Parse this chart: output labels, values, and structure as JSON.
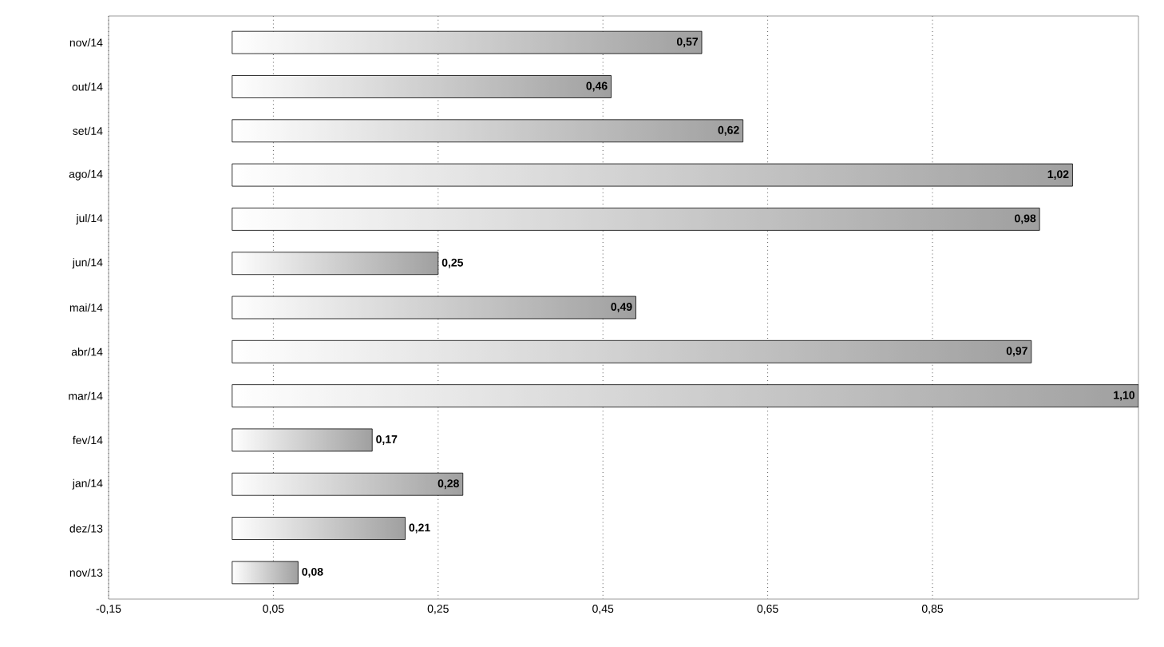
{
  "chart_data": {
    "type": "bar",
    "orientation": "horizontal",
    "categories": [
      "nov/14",
      "out/14",
      "set/14",
      "ago/14",
      "jul/14",
      "jun/14",
      "mai/14",
      "abr/14",
      "mar/14",
      "fev/14",
      "jan/14",
      "dez/13",
      "nov/13"
    ],
    "values": [
      0.57,
      0.46,
      0.62,
      1.02,
      0.98,
      0.25,
      0.49,
      0.97,
      1.1,
      0.17,
      0.28,
      0.21,
      0.08
    ],
    "value_labels": [
      "0,57",
      "0,46",
      "0,62",
      "1,02",
      "0,98",
      "0,25",
      "0,49",
      "0,97",
      "1,10",
      "0,17",
      "0,28",
      "0,21",
      "0,08"
    ],
    "color": "#c8c8c8",
    "xlim": [
      -0.15,
      1.1
    ],
    "xticks": [
      {
        "value": -0.15,
        "label": "-0,15"
      },
      {
        "value": 0.05,
        "label": "0,05"
      },
      {
        "value": 0.25,
        "label": "0,25"
      },
      {
        "value": 0.45,
        "label": "0,45"
      },
      {
        "value": 0.65,
        "label": "0,65"
      },
      {
        "value": 0.85,
        "label": "0,85"
      }
    ],
    "grid": "x"
  }
}
